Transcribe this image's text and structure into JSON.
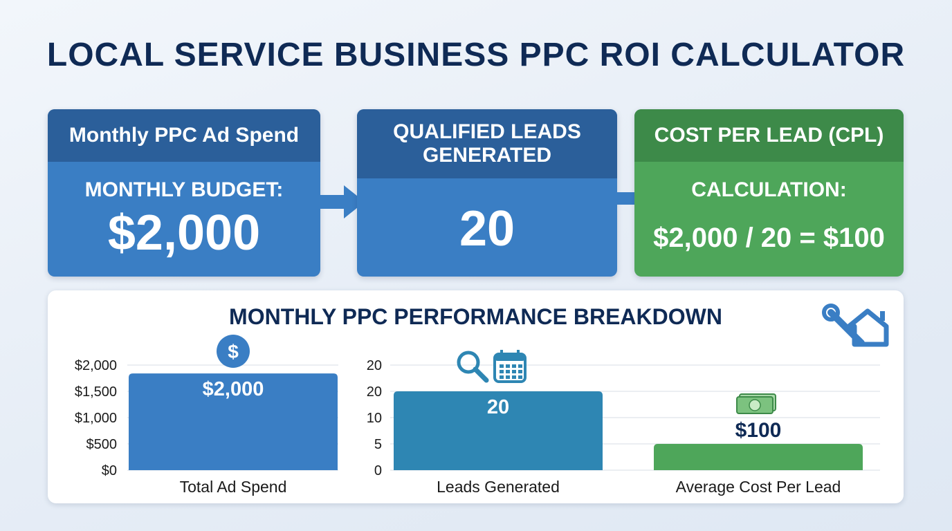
{
  "title": "LOCAL SERVICE BUSINESS PPC ROI CALCULATOR",
  "cards": {
    "spend": {
      "header": "Monthly PPC Ad Spend",
      "label": "MONTHLY BUDGET:",
      "value": "$2,000"
    },
    "leads": {
      "header": "QUALIFIED LEADS GENERATED",
      "value": "20"
    },
    "cpl": {
      "header": "COST PER LEAD (CPL)",
      "label": "CALCULATION:",
      "formula": "$2,000 / 20 = $100"
    }
  },
  "colors": {
    "blue": "#3a7ec4",
    "blue_dark": "#2b5f9a",
    "teal": "#2e86b3",
    "green": "#4ea65a",
    "green_dark": "#3d8a49",
    "navy": "#0f2a55"
  },
  "icons": [
    "dollar-icon",
    "magnifier-icon",
    "calendar-icon",
    "cash-icon",
    "wrench-house-icon"
  ],
  "chart_data": {
    "type": "bar",
    "title": "MONTHLY PPC PERFORMANCE BREAKDOWN",
    "grid": true,
    "categories": [
      "Total Ad Spend",
      "Leads Generated",
      "Average Cost Per Lead"
    ],
    "values": [
      2000,
      20,
      100
    ],
    "data_labels": [
      "$2,000",
      "20",
      "$100"
    ],
    "axes": [
      {
        "name": "spend-axis",
        "ticks": [
          "$2,000",
          "$1,500",
          "$1,000",
          "$500",
          "$0"
        ]
      },
      {
        "name": "leads-axis",
        "ticks": [
          "20",
          "20",
          "10",
          "5",
          "0"
        ]
      }
    ]
  }
}
